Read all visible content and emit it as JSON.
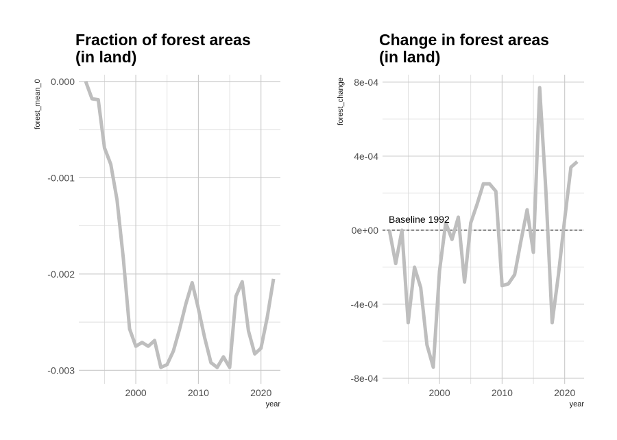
{
  "chart_data": [
    {
      "type": "line",
      "title_line1": "Fraction of forest areas",
      "title_line2": "(in land)",
      "xlabel": "year",
      "ylabel": "forest_mean_0",
      "xlim": [
        1990.9,
        2023.1
      ],
      "ylim": [
        -0.00314,
        7e-05
      ],
      "x_ticks": [
        2000,
        2010,
        2020
      ],
      "x_tick_labels": [
        "2000",
        "2010",
        "2020"
      ],
      "y_ticks": [
        0,
        -0.001,
        -0.002,
        -0.003
      ],
      "y_tick_labels": [
        "0.000",
        "-0.001",
        "-0.002",
        "-0.003"
      ],
      "grid": true,
      "line_color": "#bebebe",
      "x": [
        1992,
        1993,
        1994,
        1995,
        1996,
        1997,
        1998,
        1999,
        2000,
        2001,
        2002,
        2003,
        2004,
        2005,
        2006,
        2007,
        2008,
        2009,
        2010,
        2011,
        2012,
        2013,
        2014,
        2015,
        2016,
        2017,
        2018,
        2019,
        2020,
        2021,
        2022
      ],
      "y": [
        0.0,
        -0.00018,
        -0.00019,
        -0.00069,
        -0.00086,
        -0.00123,
        -0.00183,
        -0.00257,
        -0.00275,
        -0.00271,
        -0.00275,
        -0.00269,
        -0.00297,
        -0.00294,
        -0.0028,
        -0.00257,
        -0.00231,
        -0.00209,
        -0.00236,
        -0.00266,
        -0.00292,
        -0.00297,
        -0.00286,
        -0.00297,
        -0.00223,
        -0.00208,
        -0.00259,
        -0.00283,
        -0.00277,
        -0.00245,
        -0.00205
      ]
    },
    {
      "type": "line",
      "title_line1": "Change in forest areas",
      "title_line2": "(in land)",
      "xlabel": "year",
      "ylabel": "forest_change",
      "xlim": [
        1990.9,
        2023.1
      ],
      "ylim": [
        -0.00083,
        0.00084
      ],
      "x_ticks": [
        2000,
        2010,
        2020
      ],
      "x_tick_labels": [
        "2000",
        "2010",
        "2020"
      ],
      "y_ticks": [
        0.0008,
        0.0004,
        0,
        -0.0004,
        -0.0008
      ],
      "y_tick_labels": [
        "8e-04",
        "4e-04",
        "0e+00",
        "-4e-04",
        "-8e-04"
      ],
      "grid": true,
      "line_color": "#bebebe",
      "reference_line": {
        "y": 0,
        "style": "dashed",
        "label": "Baseline 1992"
      },
      "x": [
        1992,
        1993,
        1994,
        1995,
        1996,
        1997,
        1998,
        1999,
        2000,
        2001,
        2002,
        2003,
        2004,
        2005,
        2006,
        2007,
        2008,
        2009,
        2010,
        2011,
        2012,
        2013,
        2014,
        2015,
        2016,
        2017,
        2018,
        2019,
        2020,
        2021,
        2022
      ],
      "y": [
        0.0,
        -0.00018,
        0.0,
        -0.0005,
        -0.0002,
        -0.00031,
        -0.00062,
        -0.00074,
        -0.00022,
        4e-05,
        -5e-05,
        7e-05,
        -0.00028,
        4e-05,
        0.00014,
        0.00025,
        0.00025,
        0.00021,
        -0.0003,
        -0.00029,
        -0.00024,
        -6e-05,
        0.00011,
        -0.00012,
        0.00077,
        0.00021,
        -0.0005,
        -0.00024,
        6e-05,
        0.00034,
        0.00037
      ]
    }
  ]
}
